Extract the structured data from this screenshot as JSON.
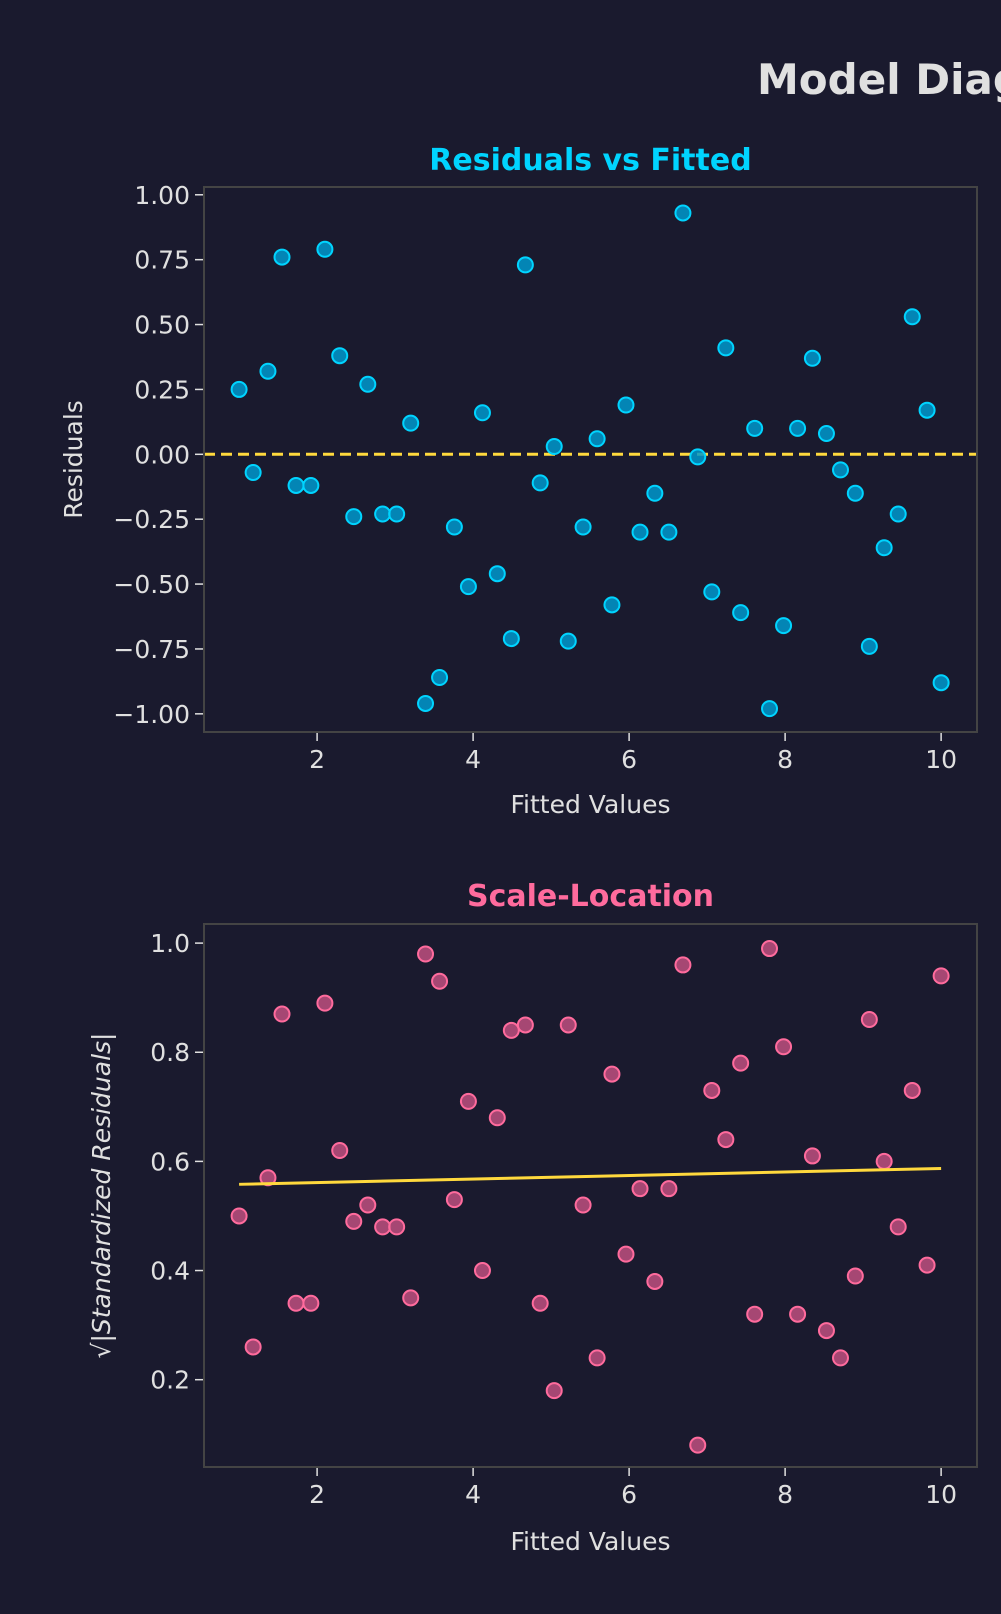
{
  "figure_title": "Model Diagnostics",
  "colors": {
    "background": "#1a1a2e",
    "text": "#e0e0e0",
    "cyan": "#00d4ff",
    "pink": "#ff6b9d",
    "yellow": "#ffd93d",
    "spine": "#444444"
  },
  "chart_data": [
    {
      "type": "scatter",
      "title": "Residuals vs Fitted",
      "xlabel": "Fitted Values",
      "ylabel": "Residuals",
      "xlim": [
        0.55,
        10.46
      ],
      "ylim": [
        -1.07,
        1.03
      ],
      "xticks": [
        2,
        4,
        6,
        8,
        10
      ],
      "xtick_labels": [
        "2",
        "4",
        "6",
        "8",
        "10"
      ],
      "yticks": [
        1.0,
        0.75,
        0.5,
        0.25,
        0.0,
        -0.25,
        -0.5,
        -0.75,
        -1.0
      ],
      "ytick_labels": [
        "1.00",
        "0.75",
        "0.50",
        "0.25",
        "0.00",
        "−0.25",
        "−0.50",
        "−0.75",
        "−1.00"
      ],
      "grid": false,
      "reference_line": {
        "y": 0,
        "style": "dashed",
        "color": "#ffd93d"
      },
      "x": [
        1.0,
        1.18,
        1.37,
        1.55,
        1.73,
        1.92,
        2.1,
        2.29,
        2.47,
        2.65,
        2.84,
        3.02,
        3.2,
        3.39,
        3.57,
        3.76,
        3.94,
        4.12,
        4.31,
        4.49,
        4.67,
        4.86,
        5.04,
        5.22,
        5.41,
        5.59,
        5.78,
        5.96,
        6.14,
        6.33,
        6.51,
        6.69,
        6.88,
        7.06,
        7.24,
        7.43,
        7.61,
        7.8,
        7.98,
        8.16,
        8.35,
        8.53,
        8.71,
        8.9,
        9.08,
        9.27,
        9.45,
        9.63,
        9.82,
        10.0
      ],
      "y": [
        0.25,
        -0.07,
        0.32,
        0.76,
        -0.12,
        -0.12,
        0.79,
        0.38,
        -0.24,
        0.27,
        -0.23,
        -0.23,
        0.12,
        -0.96,
        -0.86,
        -0.28,
        -0.51,
        0.16,
        -0.46,
        -0.71,
        0.73,
        -0.11,
        0.03,
        -0.72,
        -0.28,
        0.06,
        -0.58,
        0.19,
        -0.3,
        -0.15,
        -0.3,
        0.93,
        -0.01,
        -0.53,
        0.41,
        -0.61,
        0.1,
        -0.98,
        -0.66,
        0.1,
        0.37,
        0.08,
        -0.06,
        -0.15,
        -0.74,
        -0.36,
        -0.23,
        0.53,
        0.17,
        -0.88
      ],
      "point_color": "#00d4ff"
    },
    {
      "type": "scatter",
      "title": "Scale-Location",
      "xlabel": "Fitted Values",
      "ylabel": "√|Standardized Residuals|",
      "xlim": [
        0.55,
        10.46
      ],
      "ylim": [
        0.04,
        1.035
      ],
      "xticks": [
        2,
        4,
        6,
        8,
        10
      ],
      "xtick_labels": [
        "2",
        "4",
        "6",
        "8",
        "10"
      ],
      "yticks": [
        1.0,
        0.8,
        0.6,
        0.4,
        0.2
      ],
      "ytick_labels": [
        "1.0",
        "0.8",
        "0.6",
        "0.4",
        "0.2"
      ],
      "grid": false,
      "trend_line": {
        "x": [
          1.0,
          10.0
        ],
        "y": [
          0.558,
          0.587
        ],
        "color": "#ffd93d"
      },
      "x": [
        1.0,
        1.18,
        1.37,
        1.55,
        1.73,
        1.92,
        2.1,
        2.29,
        2.47,
        2.65,
        2.84,
        3.02,
        3.2,
        3.39,
        3.57,
        3.76,
        3.94,
        4.12,
        4.31,
        4.49,
        4.67,
        4.86,
        5.04,
        5.22,
        5.41,
        5.59,
        5.78,
        5.96,
        6.14,
        6.33,
        6.51,
        6.69,
        6.88,
        7.06,
        7.24,
        7.43,
        7.61,
        7.8,
        7.98,
        8.16,
        8.35,
        8.53,
        8.71,
        8.9,
        9.08,
        9.27,
        9.45,
        9.63,
        9.82,
        10.0
      ],
      "y": [
        0.5,
        0.26,
        0.57,
        0.87,
        0.34,
        0.34,
        0.89,
        0.62,
        0.49,
        0.52,
        0.48,
        0.48,
        0.35,
        0.98,
        0.93,
        0.53,
        0.71,
        0.4,
        0.68,
        0.84,
        0.85,
        0.34,
        0.18,
        0.85,
        0.52,
        0.24,
        0.76,
        0.43,
        0.55,
        0.38,
        0.55,
        0.96,
        0.08,
        0.73,
        0.64,
        0.78,
        0.32,
        0.99,
        0.81,
        0.32,
        0.61,
        0.29,
        0.24,
        0.39,
        0.86,
        0.6,
        0.48,
        0.73,
        0.41,
        0.94
      ],
      "point_color": "#ff6b9d"
    }
  ]
}
